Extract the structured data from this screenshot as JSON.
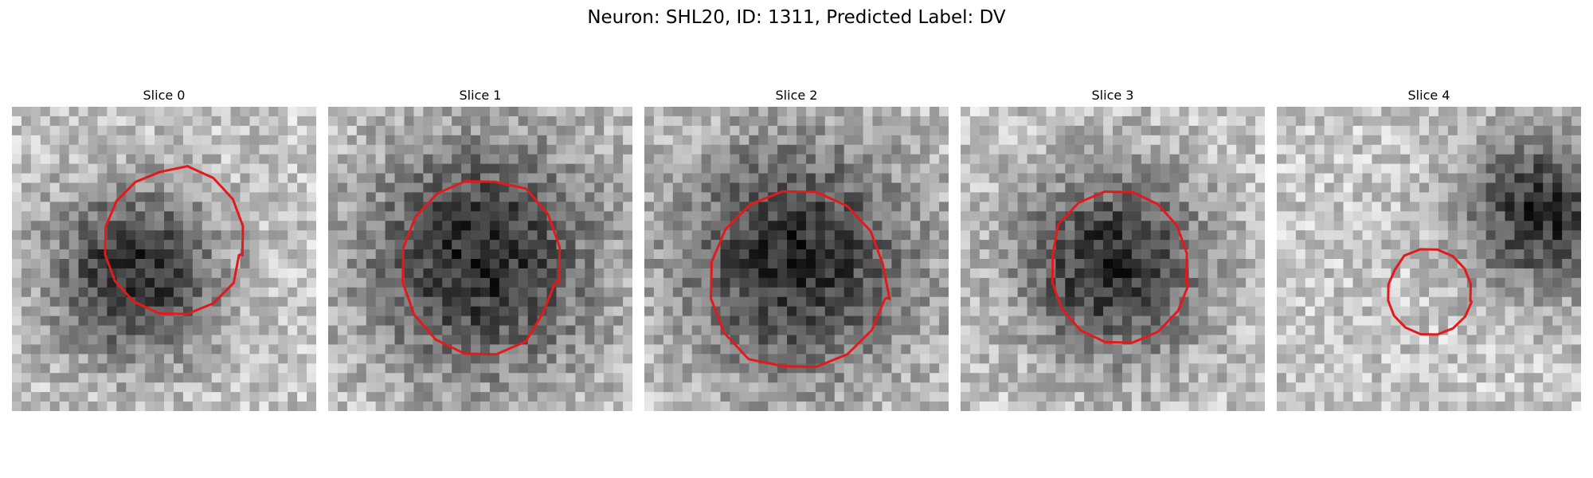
{
  "figure": {
    "title": "Neuron: SHL20, ID: 1311, Predicted Label: DV",
    "contour_color": "#e31a1c",
    "colormap": "grayscale",
    "panels": [
      {
        "title": "Slice 0",
        "seed": 11,
        "dark_blob": [
          0.4,
          0.55,
          0.2
        ],
        "contour_center": [
          0.53,
          0.44
        ],
        "contour_radius": [
          0.23,
          0.24
        ]
      },
      {
        "title": "Slice 1",
        "seed": 23,
        "dark_blob": [
          0.5,
          0.5,
          0.28
        ],
        "contour_center": [
          0.5,
          0.52
        ],
        "contour_radius": [
          0.26,
          0.29
        ]
      },
      {
        "title": "Slice 2",
        "seed": 37,
        "dark_blob": [
          0.5,
          0.5,
          0.28
        ],
        "contour_center": [
          0.51,
          0.57
        ],
        "contour_radius": [
          0.29,
          0.3
        ]
      },
      {
        "title": "Slice 3",
        "seed": 41,
        "dark_blob": [
          0.5,
          0.52,
          0.22
        ],
        "contour_center": [
          0.52,
          0.53
        ],
        "contour_radius": [
          0.23,
          0.25
        ]
      },
      {
        "title": "Slice 4",
        "seed": 53,
        "dark_blob": [
          0.88,
          0.35,
          0.18
        ],
        "contour_center": [
          0.5,
          0.61
        ],
        "contour_radius": [
          0.14,
          0.14
        ]
      }
    ]
  }
}
